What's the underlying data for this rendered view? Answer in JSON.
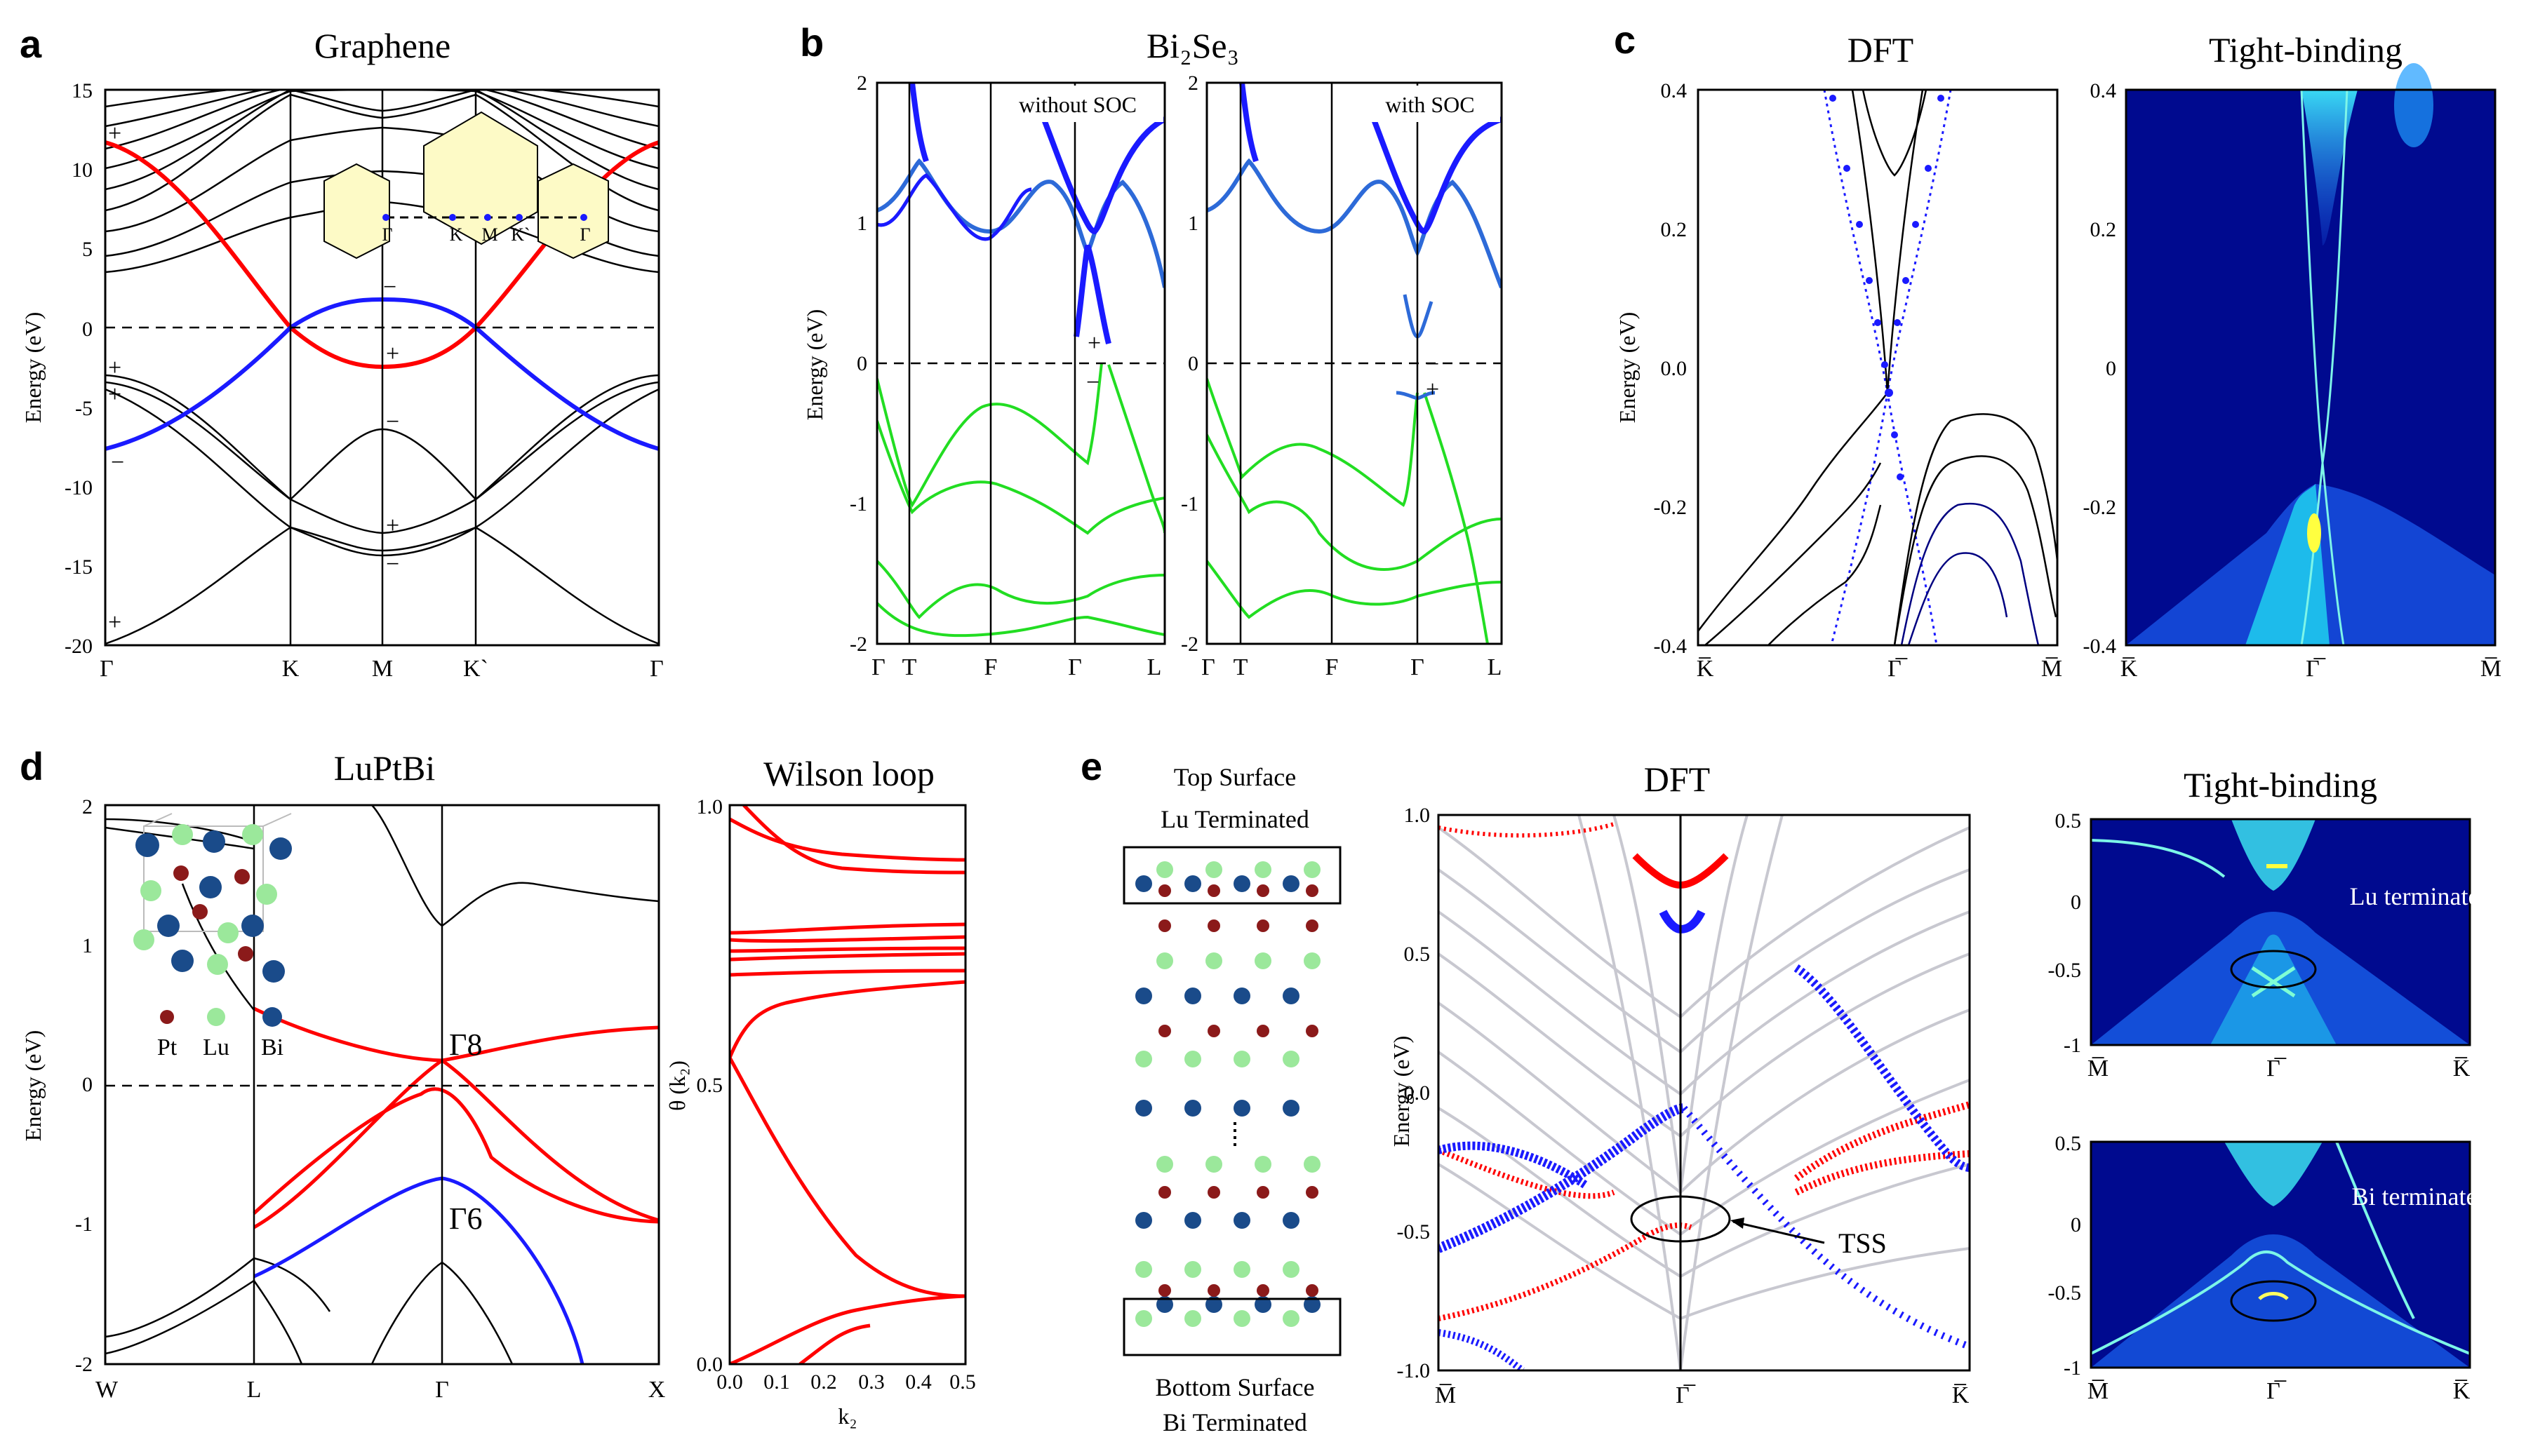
{
  "figure": {
    "panel_a": {
      "label": "a",
      "title": "Graphene",
      "ylabel": "Energy (eV)",
      "yticks": [
        "15",
        "10",
        "5",
        "0",
        "-5",
        "-10",
        "-15",
        "-20"
      ],
      "kpoints": [
        "Γ",
        "K",
        "M",
        "K`",
        "Γ"
      ],
      "parity": [
        "+",
        "+",
        "+",
        "−",
        "−",
        "+",
        "−",
        "+",
        "−",
        "+"
      ],
      "bz_labels": [
        "Γ",
        "K",
        "M",
        "K`",
        "Γ"
      ]
    },
    "panel_b": {
      "label": "b",
      "title": "Bi₂Se₃",
      "ylabel": "Energy (eV)",
      "yticks": [
        "2",
        "1",
        "0",
        "-1",
        "-2"
      ],
      "kpoints": [
        "Γ",
        "T",
        "F",
        "Γ",
        "L"
      ],
      "left_note": "without SOC",
      "right_note": "with SOC",
      "left_parity": [
        "+",
        "−"
      ],
      "right_parity": [
        "−",
        "+"
      ]
    },
    "panel_c": {
      "label": "c",
      "title_left": "DFT",
      "title_right": "Tight-binding",
      "ylabel": "Energy (eV)",
      "yticks": [
        "0.4",
        "0.2",
        "0.0",
        "-0.2",
        "-0.4"
      ],
      "yticks_tb": [
        "0.4",
        "0.2",
        "0",
        "-0.2",
        "-0.4"
      ],
      "kpoints": [
        "K̅",
        "Γ̅",
        "M̅"
      ]
    },
    "panel_d": {
      "label": "d",
      "title": "LuPtBi",
      "title_wilson": "Wilson loop",
      "ylabel": "Energy (eV)",
      "yticks": [
        "2",
        "1",
        "0",
        "-1",
        "-2"
      ],
      "kpoints": [
        "W",
        "L",
        "Γ",
        "X"
      ],
      "gamma8": "Γ8",
      "gamma6": "Γ6",
      "atoms": [
        "Pt",
        "Lu",
        "Bi"
      ],
      "wilson_ylabel": "θ (k₂)",
      "wilson_xlabel": "k₂",
      "wilson_yticks": [
        "1.0",
        "0.5",
        "0.0"
      ],
      "wilson_xticks": [
        "0.0",
        "0.1",
        "0.2",
        "0.3",
        "0.4",
        "0.5"
      ]
    },
    "panel_e": {
      "label": "e",
      "top_surface": "Top Surface",
      "top_term": "Lu Terminated",
      "bottom_surface": "Bottom Surface",
      "bottom_term": "Bi Terminated",
      "title_dft": "DFT",
      "title_tb": "Tight-binding",
      "ylabel": "Energy (eV)",
      "yticks": [
        "1.0",
        "0.5",
        "0.0",
        "-0.5",
        "-1.0"
      ],
      "kpoints": [
        "M̅",
        "Γ̅",
        "K̅"
      ],
      "tss": "TSS",
      "tb_yticks": [
        "0.5",
        "0",
        "-0.5",
        "-1"
      ],
      "tb_top_note": "Lu terminated",
      "tb_bottom_note": "Bi terminated"
    },
    "colors": {
      "red": "#ff0000",
      "blue": "#1a1aff",
      "green": "#22dd22",
      "navy": "#00008b",
      "cyan": "#55e8f0"
    }
  }
}
